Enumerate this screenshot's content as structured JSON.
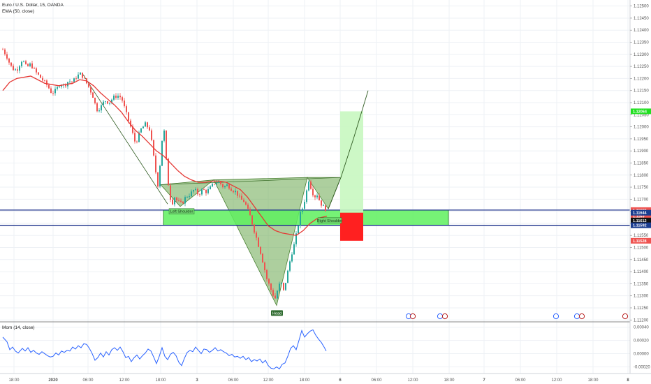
{
  "legend": {
    "symbol": "Euro / U.S. Dollar, 15, OANDA",
    "ema": "EMA (50, close)",
    "mom": "Mom (14, close)"
  },
  "colors": {
    "up": "#26a69a",
    "down": "#ef5350",
    "ema": "#e53935",
    "mom": "#2962ff",
    "pattern_fill": "#6aa84f",
    "zone_fill": "#5ef05e",
    "target": "#c8f7c0",
    "stop": "#ff2020"
  },
  "chart_data": {
    "type": "candlestick",
    "x_ticks": [
      "18:00",
      "2020",
      "06:00",
      "12:00",
      "18:00",
      "3",
      "06:00",
      "12:00",
      "18:00",
      "6",
      "06:00",
      "12:00",
      "18:00",
      "7",
      "06:00",
      "12:00",
      "18:00",
      "8"
    ],
    "y_ticks": [
      1.125,
      1.1245,
      1.124,
      1.1235,
      1.123,
      1.1225,
      1.122,
      1.1215,
      1.121,
      1.1205,
      1.12,
      1.1195,
      1.119,
      1.1185,
      1.118,
      1.1175,
      1.117,
      1.1165,
      1.116,
      1.1155,
      1.115,
      1.1145,
      1.114,
      1.1135,
      1.113,
      1.1125,
      1.112
    ],
    "ylim": [
      1.11195,
      1.12525
    ],
    "price_tags": [
      {
        "value": 1.12064,
        "label": "1.12064",
        "bg": "#22e022",
        "fg": "#ffffff"
      },
      {
        "value": 1.11655,
        "label": "1.11655",
        "bg": "#ef5350",
        "fg": "#ffffff"
      },
      {
        "value": 1.1163,
        "label": "1.1163",
        "bg": "#ef5350",
        "fg": "#ffffff"
      },
      {
        "value": 1.11644,
        "label": "1.11644",
        "bg": "#1a3c8f",
        "fg": "#ffffff"
      },
      {
        "value": 1.11612,
        "label": "1.11612",
        "bg": "#111111",
        "fg": "#ffffff"
      },
      {
        "value": 1.11592,
        "label": "1.11592",
        "bg": "#1a3c8f",
        "fg": "#ffffff"
      },
      {
        "value": 1.11528,
        "label": "1.11528",
        "bg": "#ef5350",
        "fg": "#ffffff"
      }
    ],
    "pattern_labels": {
      "left": "Left Shoulder",
      "head": "Head",
      "right": "Right Shoulder"
    },
    "close_path": [
      [
        0,
        1.1232
      ],
      [
        6,
        1.1229
      ],
      [
        10,
        1.1226
      ],
      [
        14,
        1.1224
      ],
      [
        20,
        1.12235
      ],
      [
        28,
        1.1228
      ],
      [
        34,
        1.12245
      ],
      [
        40,
        1.1226
      ],
      [
        46,
        1.1223
      ],
      [
        52,
        1.1221
      ],
      [
        58,
        1.1219
      ],
      [
        64,
        1.1217
      ],
      [
        70,
        1.1214
      ],
      [
        76,
        1.1215
      ],
      [
        82,
        1.1218
      ],
      [
        88,
        1.1217
      ],
      [
        94,
        1.1219
      ],
      [
        100,
        1.12185
      ],
      [
        106,
        1.1221
      ],
      [
        112,
        1.1222
      ],
      [
        118,
        1.1219
      ],
      [
        124,
        1.1216
      ],
      [
        130,
        1.1212
      ],
      [
        134,
        1.1207
      ],
      [
        140,
        1.1208
      ],
      [
        146,
        1.1211
      ],
      [
        152,
        1.121
      ],
      [
        158,
        1.1212
      ],
      [
        164,
        1.1213
      ],
      [
        170,
        1.1212
      ],
      [
        176,
        1.1206
      ],
      [
        182,
        1.1201
      ],
      [
        186,
        1.1197
      ],
      [
        190,
        1.1193
      ],
      [
        194,
        1.1196
      ],
      [
        198,
        1.1199
      ],
      [
        204,
        1.1201
      ],
      [
        210,
        1.1199
      ],
      [
        214,
        1.1192
      ],
      [
        218,
        1.1183
      ],
      [
        222,
        1.1176
      ],
      [
        226,
        1.1187
      ],
      [
        230,
        1.1202
      ],
      [
        234,
        1.1186
      ],
      [
        238,
        1.1173
      ],
      [
        242,
        1.1168
      ],
      [
        246,
        1.1171
      ],
      [
        250,
        1.1169
      ],
      [
        256,
        1.1168
      ],
      [
        262,
        1.1171
      ],
      [
        268,
        1.1172
      ],
      [
        274,
        1.1174
      ],
      [
        280,
        1.1172
      ],
      [
        286,
        1.1174
      ],
      [
        292,
        1.1173
      ],
      [
        298,
        1.1175
      ],
      [
        304,
        1.1177
      ],
      [
        310,
        1.1177
      ],
      [
        316,
        1.1175
      ],
      [
        322,
        1.1176
      ],
      [
        328,
        1.1174
      ],
      [
        334,
        1.1173
      ],
      [
        340,
        1.117
      ],
      [
        346,
        1.1169
      ],
      [
        350,
        1.1166
      ],
      [
        354,
        1.1163
      ],
      [
        358,
        1.1159
      ],
      [
        364,
        1.1153
      ],
      [
        370,
        1.1147
      ],
      [
        374,
        1.1142
      ],
      [
        378,
        1.1137
      ],
      [
        382,
        1.1134
      ],
      [
        386,
        1.1131
      ],
      [
        390,
        1.1129
      ],
      [
        394,
        1.1133
      ],
      [
        398,
        1.1136
      ],
      [
        402,
        1.1132
      ],
      [
        406,
        1.1137
      ],
      [
        410,
        1.1143
      ],
      [
        414,
        1.1148
      ],
      [
        418,
        1.1152
      ],
      [
        422,
        1.1158
      ],
      [
        426,
        1.1164
      ],
      [
        430,
        1.1167
      ],
      [
        434,
        1.1172
      ],
      [
        438,
        1.1178
      ],
      [
        442,
        1.1174
      ],
      [
        446,
        1.1171
      ],
      [
        450,
        1.1172
      ],
      [
        454,
        1.1169
      ],
      [
        458,
        1.1167
      ],
      [
        462,
        1.1166
      ],
      [
        464,
        1.11655
      ]
    ],
    "ema_path": [
      [
        0,
        1.1215
      ],
      [
        10,
        1.12185
      ],
      [
        20,
        1.122
      ],
      [
        30,
        1.12205
      ],
      [
        40,
        1.1221
      ],
      [
        50,
        1.12195
      ],
      [
        60,
        1.1218
      ],
      [
        70,
        1.12175
      ],
      [
        80,
        1.1217
      ],
      [
        90,
        1.12175
      ],
      [
        100,
        1.1218
      ],
      [
        110,
        1.12195
      ],
      [
        120,
        1.1219
      ],
      [
        130,
        1.1217
      ],
      [
        140,
        1.1214
      ],
      [
        150,
        1.12115
      ],
      [
        160,
        1.1209
      ],
      [
        170,
        1.1206
      ],
      [
        180,
        1.1202
      ],
      [
        190,
        1.11985
      ],
      [
        200,
        1.1196
      ],
      [
        210,
        1.1193
      ],
      [
        220,
        1.119
      ],
      [
        230,
        1.1188
      ],
      [
        240,
        1.1185
      ],
      [
        250,
        1.1182
      ],
      [
        260,
        1.11795
      ],
      [
        270,
        1.1178
      ],
      [
        280,
        1.1177
      ],
      [
        290,
        1.1177
      ],
      [
        300,
        1.11775
      ],
      [
        310,
        1.11775
      ],
      [
        320,
        1.1177
      ],
      [
        330,
        1.11755
      ],
      [
        340,
        1.1174
      ],
      [
        350,
        1.1171
      ],
      [
        360,
        1.1167
      ],
      [
        370,
        1.1163
      ],
      [
        380,
        1.1159
      ],
      [
        390,
        1.1157
      ],
      [
        400,
        1.1156
      ],
      [
        410,
        1.11555
      ],
      [
        420,
        1.1155
      ],
      [
        430,
        1.1157
      ],
      [
        440,
        1.116
      ],
      [
        450,
        1.1162
      ],
      [
        464,
        1.1163
      ]
    ],
    "mom_ylim": [
      -0.0003,
      0.00047
    ],
    "mom_ticks": [
      0.0004,
      0.0002,
      0.0,
      -0.0002
    ],
    "mom_tick_labels": [
      "0.00040",
      "0.00020",
      "0.00000",
      "-0.00020"
    ],
    "mom_path": [
      [
        0,
        0.00025
      ],
      [
        6,
        0.00018
      ],
      [
        10,
        6e-05
      ],
      [
        14,
        0.0001
      ],
      [
        18,
        4e-05
      ],
      [
        22,
        1e-05
      ],
      [
        28,
        8e-05
      ],
      [
        32,
        4e-05
      ],
      [
        36,
        9e-05
      ],
      [
        40,
        2e-05
      ],
      [
        44,
        5e-05
      ],
      [
        48,
        1e-05
      ],
      [
        52,
        -1e-05
      ],
      [
        56,
        3e-05
      ],
      [
        60,
        0.0
      ],
      [
        64,
        -3e-05
      ],
      [
        68,
        -5e-05
      ],
      [
        72,
        -4e-05
      ],
      [
        76,
        1e-05
      ],
      [
        80,
        -2e-05
      ],
      [
        84,
        4e-05
      ],
      [
        88,
        2e-05
      ],
      [
        92,
        5e-05
      ],
      [
        96,
        4e-05
      ],
      [
        100,
        0.0001
      ],
      [
        104,
        7e-05
      ],
      [
        108,
        0.00012
      ],
      [
        112,
        9e-05
      ],
      [
        116,
        0.00015
      ],
      [
        120,
        0.00014
      ],
      [
        124,
        8e-05
      ],
      [
        128,
        0.0
      ],
      [
        132,
        -0.0001
      ],
      [
        136,
        -6e-05
      ],
      [
        140,
        1e-05
      ],
      [
        144,
        -5e-05
      ],
      [
        148,
        3e-05
      ],
      [
        152,
        -2e-05
      ],
      [
        156,
        6e-05
      ],
      [
        160,
        9e-05
      ],
      [
        164,
        5e-05
      ],
      [
        168,
        0.0001
      ],
      [
        172,
        3e-05
      ],
      [
        176,
        -6e-05
      ],
      [
        180,
        -4e-05
      ],
      [
        184,
        -0.00012
      ],
      [
        188,
        -6e-05
      ],
      [
        192,
        -2e-05
      ],
      [
        196,
        -8e-05
      ],
      [
        200,
        -3e-05
      ],
      [
        204,
        1e-05
      ],
      [
        208,
        7e-05
      ],
      [
        212,
        4e-05
      ],
      [
        216,
        -5e-05
      ],
      [
        220,
        -0.00015
      ],
      [
        224,
        -4e-05
      ],
      [
        228,
        9e-05
      ],
      [
        232,
        -4e-05
      ],
      [
        236,
        -9e-05
      ],
      [
        240,
        -1e-05
      ],
      [
        244,
        2e-05
      ],
      [
        248,
        -3e-05
      ],
      [
        252,
        -0.00013
      ],
      [
        256,
        -0.00018
      ],
      [
        260,
        -7e-05
      ],
      [
        264,
        2e-05
      ],
      [
        268,
        5e-05
      ],
      [
        272,
        3e-05
      ],
      [
        276,
        0.0001
      ],
      [
        280,
        5e-05
      ],
      [
        284,
        0.0
      ],
      [
        288,
        7e-05
      ],
      [
        292,
        6e-05
      ],
      [
        296,
        2e-05
      ],
      [
        300,
        5e-05
      ],
      [
        304,
        9e-05
      ],
      [
        308,
        4e-05
      ],
      [
        312,
        6e-05
      ],
      [
        316,
        3e-05
      ],
      [
        320,
        1e-05
      ],
      [
        324,
        -3e-05
      ],
      [
        328,
        -1e-05
      ],
      [
        332,
        -5e-05
      ],
      [
        336,
        -4e-05
      ],
      [
        340,
        -7e-05
      ],
      [
        344,
        -4e-05
      ],
      [
        348,
        -9e-05
      ],
      [
        352,
        -6e-05
      ],
      [
        356,
        -0.00012
      ],
      [
        360,
        -9e-05
      ],
      [
        364,
        -0.00011
      ],
      [
        368,
        -8e-05
      ],
      [
        372,
        -0.00014
      ],
      [
        376,
        -0.0001
      ],
      [
        380,
        -0.00018
      ],
      [
        384,
        -0.00022
      ],
      [
        388,
        -0.00023
      ],
      [
        392,
        -0.0002
      ],
      [
        396,
        -0.00023
      ],
      [
        400,
        -0.00016
      ],
      [
        404,
        -0.00014
      ],
      [
        408,
        -4e-05
      ],
      [
        412,
        8e-05
      ],
      [
        416,
        0.00012
      ],
      [
        420,
        6e-05
      ],
      [
        424,
        0.0002
      ],
      [
        428,
        0.00035
      ],
      [
        432,
        0.00025
      ],
      [
        436,
        0.0003
      ],
      [
        440,
        0.00034
      ],
      [
        444,
        0.00036
      ],
      [
        448,
        0.00028
      ],
      [
        452,
        0.00022
      ],
      [
        456,
        0.00017
      ],
      [
        460,
        0.0001
      ],
      [
        463,
        4e-05
      ]
    ]
  }
}
